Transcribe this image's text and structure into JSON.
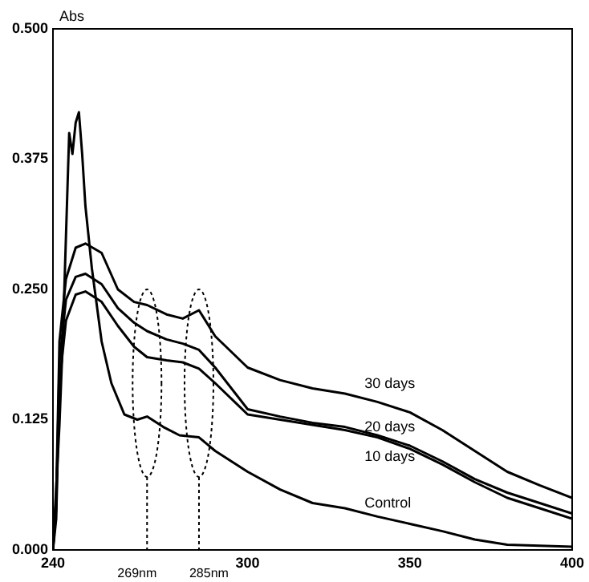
{
  "chart_data": {
    "type": "line",
    "ylabel": "Abs",
    "xlim": [
      240,
      400
    ],
    "xticks": [
      240,
      300,
      350,
      400
    ],
    "ylim": [
      0,
      0.5
    ],
    "yticks": [
      {
        "value": 0,
        "label": "0.000"
      },
      {
        "value": 0.125,
        "label": "0.125"
      },
      {
        "value": 0.25,
        "label": "0.250"
      },
      {
        "value": 0.375,
        "label": "0.375"
      },
      {
        "value": 0.5,
        "label": "0.500"
      }
    ],
    "grid": false,
    "legend": false,
    "marker": "none",
    "line_style": "solid",
    "series": [
      {
        "name": "30 days",
        "color": "#000000",
        "x": [
          240,
          241,
          242,
          244,
          247,
          250,
          255,
          260,
          265,
          269,
          275,
          280,
          285,
          290,
          300,
          310,
          320,
          330,
          340,
          350,
          360,
          370,
          380,
          390,
          400
        ],
        "values": [
          0,
          0.05,
          0.2,
          0.26,
          0.29,
          0.294,
          0.285,
          0.25,
          0.238,
          0.235,
          0.226,
          0.222,
          0.23,
          0.205,
          0.175,
          0.163,
          0.155,
          0.15,
          0.142,
          0.132,
          0.115,
          0.095,
          0.075,
          0.062,
          0.05
        ]
      },
      {
        "name": "20 days",
        "color": "#000000",
        "x": [
          240,
          241,
          242,
          244,
          247,
          250,
          255,
          260,
          265,
          269,
          275,
          280,
          285,
          290,
          300,
          310,
          320,
          330,
          340,
          350,
          360,
          370,
          380,
          390,
          400
        ],
        "values": [
          0,
          0.04,
          0.18,
          0.24,
          0.262,
          0.265,
          0.255,
          0.232,
          0.218,
          0.21,
          0.202,
          0.198,
          0.192,
          0.175,
          0.135,
          0.128,
          0.122,
          0.118,
          0.11,
          0.1,
          0.085,
          0.068,
          0.055,
          0.045,
          0.035
        ]
      },
      {
        "name": "10 days",
        "color": "#000000",
        "x": [
          240,
          241,
          242,
          244,
          247,
          250,
          255,
          260,
          265,
          269,
          275,
          280,
          285,
          290,
          300,
          310,
          320,
          330,
          340,
          350,
          360,
          370,
          380,
          390,
          400
        ],
        "values": [
          0,
          0.03,
          0.16,
          0.22,
          0.245,
          0.248,
          0.238,
          0.215,
          0.195,
          0.185,
          0.182,
          0.18,
          0.174,
          0.16,
          0.13,
          0.125,
          0.12,
          0.115,
          0.108,
          0.097,
          0.082,
          0.065,
          0.05,
          0.04,
          0.03
        ]
      },
      {
        "name": "Control",
        "color": "#000000",
        "x": [
          240,
          242,
          243,
          245,
          246,
          247,
          248,
          249,
          250,
          252,
          255,
          258,
          262,
          266,
          269,
          274,
          279,
          285,
          290,
          300,
          310,
          320,
          330,
          340,
          350,
          360,
          370,
          380,
          390,
          400
        ],
        "values": [
          0,
          0.12,
          0.2,
          0.4,
          0.38,
          0.41,
          0.42,
          0.38,
          0.33,
          0.27,
          0.2,
          0.16,
          0.13,
          0.125,
          0.128,
          0.118,
          0.11,
          0.108,
          0.095,
          0.075,
          0.058,
          0.045,
          0.04,
          0.032,
          0.025,
          0.018,
          0.01,
          0.005,
          0.004,
          0.003
        ]
      }
    ],
    "ref_lines": [
      {
        "axis": "x",
        "value": 269,
        "label": "269nm",
        "line_style": "dotted"
      },
      {
        "axis": "x",
        "value": 285,
        "label": "285nm",
        "line_style": "dotted"
      }
    ]
  }
}
